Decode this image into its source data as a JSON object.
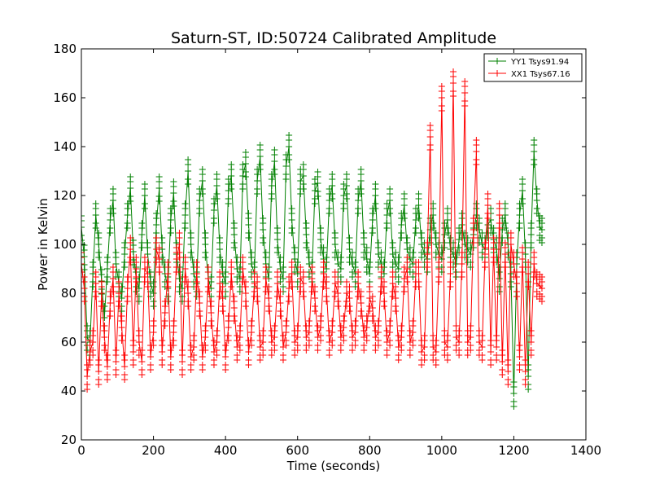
{
  "chart_data": {
    "type": "line",
    "title": "Saturn-ST, ID:50724 Calibrated Amplitude",
    "xlabel": "Time (seconds)",
    "ylabel": "Power in Kelvin",
    "xlim": [
      0,
      1400
    ],
    "ylim": [
      20,
      180
    ],
    "xticks": [
      0,
      200,
      400,
      600,
      800,
      1000,
      1200,
      1400
    ],
    "yticks": [
      20,
      40,
      60,
      80,
      100,
      120,
      140,
      160,
      180
    ],
    "grid": false,
    "legend_position": "top-right",
    "marker": "+",
    "series": [
      {
        "name": "YY1 Tsys91.94",
        "color": "#008000",
        "x": [
          0,
          8,
          16,
          24,
          32,
          40,
          48,
          56,
          64,
          72,
          80,
          88,
          96,
          104,
          112,
          120,
          128,
          136,
          144,
          152,
          160,
          168,
          176,
          184,
          192,
          200,
          208,
          216,
          224,
          232,
          240,
          248,
          256,
          264,
          272,
          280,
          288,
          296,
          304,
          312,
          320,
          328,
          336,
          344,
          352,
          360,
          368,
          376,
          384,
          392,
          400,
          408,
          416,
          424,
          432,
          440,
          448,
          456,
          464,
          472,
          480,
          488,
          496,
          504,
          512,
          520,
          528,
          536,
          544,
          552,
          560,
          568,
          576,
          584,
          592,
          600,
          608,
          616,
          624,
          632,
          640,
          648,
          656,
          664,
          672,
          680,
          688,
          696,
          704,
          712,
          720,
          728,
          736,
          744,
          752,
          760,
          768,
          776,
          784,
          792,
          800,
          808,
          816,
          824,
          832,
          840,
          848,
          856,
          864,
          872,
          880,
          888,
          896,
          904,
          912,
          920,
          928,
          936,
          944,
          952,
          960,
          968,
          976,
          984,
          992,
          1000,
          1008,
          1016,
          1024,
          1032,
          1040,
          1048,
          1056,
          1064,
          1072,
          1080,
          1088,
          1096,
          1104,
          1112,
          1120,
          1128,
          1136,
          1144,
          1152,
          1160,
          1168,
          1176,
          1184,
          1192,
          1200,
          1208,
          1216,
          1224,
          1232,
          1240,
          1248,
          1256,
          1264,
          1272,
          1278
        ],
        "y": [
          107,
          95,
          62,
          60,
          88,
          112,
          100,
          85,
          70,
          90,
          110,
          118,
          92,
          84,
          78,
          96,
          112,
          123,
          97,
          86,
          82,
          104,
          120,
          96,
          84,
          80,
          108,
          123,
          98,
          88,
          82,
          110,
          121,
          96,
          86,
          82,
          112,
          130,
          100,
          88,
          84,
          118,
          126,
          100,
          86,
          82,
          114,
          124,
          98,
          88,
          84,
          122,
          128,
          104,
          90,
          86,
          128,
          133,
          108,
          92,
          88,
          126,
          136,
          106,
          92,
          86,
          124,
          134,
          102,
          90,
          86,
          132,
          140,
          110,
          94,
          88,
          126,
          128,
          104,
          92,
          88,
          122,
          125,
          102,
          94,
          90,
          118,
          124,
          100,
          92,
          90,
          120,
          124,
          98,
          92,
          88,
          118,
          126,
          100,
          94,
          88,
          110,
          120,
          96,
          92,
          88,
          112,
          118,
          96,
          92,
          90,
          108,
          116,
          98,
          94,
          92,
          110,
          116,
          100,
          96,
          94,
          106,
          112,
          100,
          96,
          94,
          104,
          110,
          98,
          96,
          92,
          102,
          108,
          100,
          98,
          96,
          104,
          112,
          106,
          100,
          98,
          108,
          110,
          102,
          98,
          86,
          106,
          112,
          100,
          88,
          39,
          92,
          112,
          122,
          96,
          46,
          104,
          138,
          118,
          107,
          106
        ]
      },
      {
        "name": "XX1 Tsys67.16",
        "color": "#ff0000",
        "x": [
          0,
          8,
          16,
          24,
          32,
          40,
          48,
          56,
          64,
          72,
          80,
          88,
          96,
          104,
          112,
          120,
          128,
          136,
          144,
          152,
          160,
          168,
          176,
          184,
          192,
          200,
          208,
          216,
          224,
          232,
          240,
          248,
          256,
          264,
          272,
          280,
          288,
          296,
          304,
          312,
          320,
          328,
          336,
          344,
          352,
          360,
          368,
          376,
          384,
          392,
          400,
          408,
          416,
          424,
          432,
          440,
          448,
          456,
          464,
          472,
          480,
          488,
          496,
          504,
          512,
          520,
          528,
          536,
          544,
          552,
          560,
          568,
          576,
          584,
          592,
          600,
          608,
          616,
          624,
          632,
          640,
          648,
          656,
          664,
          672,
          680,
          688,
          696,
          704,
          712,
          720,
          728,
          736,
          744,
          752,
          760,
          768,
          776,
          784,
          792,
          800,
          808,
          816,
          824,
          832,
          840,
          848,
          856,
          864,
          872,
          880,
          888,
          896,
          904,
          912,
          920,
          928,
          936,
          944,
          952,
          960,
          968,
          976,
          984,
          992,
          1000,
          1008,
          1016,
          1024,
          1032,
          1040,
          1048,
          1056,
          1064,
          1072,
          1080,
          1088,
          1096,
          1104,
          1112,
          1120,
          1128,
          1136,
          1144,
          1152,
          1160,
          1168,
          1176,
          1184,
          1192,
          1200,
          1208,
          1216,
          1224,
          1232,
          1240,
          1248,
          1256,
          1264,
          1272,
          1278
        ],
        "y": [
          92,
          82,
          46,
          56,
          60,
          84,
          48,
          80,
          62,
          50,
          76,
          86,
          52,
          80,
          66,
          50,
          82,
          98,
          56,
          90,
          60,
          52,
          90,
          88,
          54,
          64,
          98,
          94,
          56,
          72,
          88,
          54,
          64,
          94,
          100,
          52,
          90,
          80,
          54,
          58,
          88,
          76,
          54,
          62,
          86,
          72,
          56,
          60,
          84,
          78,
          54,
          66,
          88,
          74,
          58,
          62,
          90,
          80,
          56,
          64,
          84,
          82,
          58,
          60,
          86,
          78,
          60,
          62,
          84,
          76,
          58,
          64,
          82,
          88,
          60,
          62,
          86,
          84,
          62,
          64,
          86,
          78,
          62,
          66,
          88,
          82,
          60,
          64,
          84,
          80,
          62,
          66,
          80,
          78,
          62,
          64,
          84,
          76,
          62,
          66,
          78,
          74,
          62,
          64,
          86,
          80,
          60,
          64,
          84,
          78,
          58,
          62,
          86,
          90,
          60,
          64,
          88,
          88,
          56,
          58,
          96,
          144,
          58,
          56,
          90,
          160,
          60,
          58,
          88,
          166,
          62,
          60,
          92,
          162,
          60,
          62,
          106,
          138,
          60,
          58,
          96,
          116,
          56,
          98,
          58,
          112,
          52,
          96,
          48,
          100,
          92,
          84,
          54,
          94,
          48,
          88,
          60,
          92,
          84,
          83,
          82
        ]
      }
    ],
    "legend": [
      {
        "label": "YY1 Tsys91.94",
        "color": "#008000"
      },
      {
        "label": "XX1 Tsys67.16",
        "color": "#ff0000"
      }
    ]
  }
}
